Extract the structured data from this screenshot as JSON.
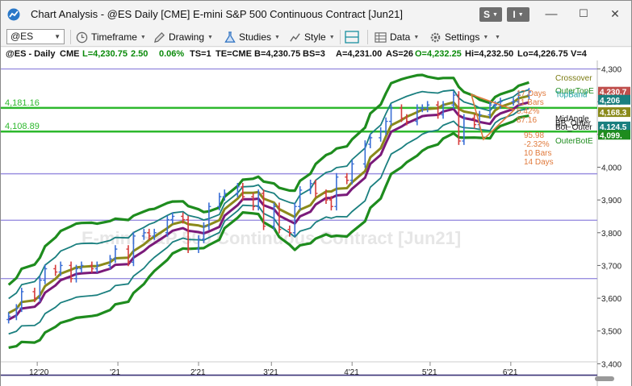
{
  "window": {
    "title": "Chart Analysis - @ES Daily [CME] E-mini S&P 500 Continuous Contract [Jun21]",
    "btn_s": "S",
    "btn_i": "I",
    "minimize": "—",
    "maximize": "☐",
    "close": "✕"
  },
  "toolbar": {
    "symbol": "@ES",
    "timeframe": "Timeframe",
    "drawing": "Drawing",
    "studies": "Studies",
    "style": "Style",
    "data": "Data",
    "settings": "Settings"
  },
  "infobar": {
    "symbol": "@ES - Daily",
    "exchange": "CME",
    "last": "L=4,230.75",
    "change": "2.50",
    "pct": "0.06%",
    "ts": "TS=1",
    "te": "TE=CME",
    "bid": "B=4,230.75",
    "bs": "BS=3",
    "ask": "A=4,231.00",
    "as": "AS=26",
    "open": "O=4,232.25",
    "high": "Hi=4,232.50",
    "low": "Lo=4,226.75",
    "volume": "V=4"
  },
  "colors": {
    "green_line": "#2db82d",
    "purple_line": "#9a8fe0",
    "navy_line": "#3b3478",
    "band_outer": "#1e8c1e",
    "band_teal": "#1a7f7f",
    "band_olive": "#8a8a1a",
    "band_purple": "#7a1a7a",
    "bar_up": "#3b6fd6",
    "bar_down": "#d63b3b",
    "watermark": "#e6e6e6"
  },
  "chart": {
    "watermark": "E-mini S&P 500 Continuous Contract [Jun21]",
    "hlines": [
      {
        "name": "4181",
        "value": 4181.16,
        "label": "4,181.16",
        "color": "#2db82d"
      },
      {
        "name": "4108",
        "value": 4108.89,
        "label": "4,108.89",
        "color": "#2db82d"
      }
    ],
    "plain_hlines": [
      4300,
      3980,
      3838,
      3660,
      3365
    ],
    "right_labels": [
      {
        "text": "Crossover",
        "value": 4274,
        "color": "#7a7a10"
      },
      {
        "text": "OuterTopE",
        "value": 4235,
        "color": "#1e8c1e"
      },
      {
        "text": "TopBand",
        "value": 4224,
        "color": "#1aa0a0"
      },
      {
        "text": "MidAngle",
        "value": 4150,
        "color": "#111111"
      },
      {
        "text": "BB_Outer",
        "value": 4137,
        "color": "#111111"
      },
      {
        "text": "Bot_Outer",
        "value": 4124,
        "color": "#111111"
      },
      {
        "text": "OuterBotE",
        "value": 4082,
        "color": "#1e8c1e"
      }
    ],
    "annotations_top": [
      "17 Days",
      "11 Bars",
      "5.42%",
      "87.16"
    ],
    "annotations_bottom": [
      "95.98",
      "-2.32%",
      "10 Bars",
      "14 Days"
    ],
    "price_tags": [
      {
        "text": "4,230.7",
        "value": 4230.75,
        "bg": "#c0504d"
      },
      {
        "text": "4,206",
        "value": 4206,
        "bg": "#1a7f7f"
      },
      {
        "text": "4,168.3",
        "value": 4168.3,
        "bg": "#8a8a1a"
      },
      {
        "text": "4,124.5",
        "value": 4124.5,
        "bg": "#1a7f7f"
      },
      {
        "text": "4,099.",
        "value": 4099,
        "bg": "#1e8c1e"
      }
    ]
  },
  "chart_data": {
    "type": "line",
    "title": "@ES Daily [CME] E-mini S&P 500 Continuous Contract [Jun21]",
    "y_ticks": [
      "4,300",
      "4,200",
      "4,100",
      "4,000",
      "3,900",
      "3,800",
      "3,700",
      "3,600",
      "3,500",
      "3,400"
    ],
    "y_tick_values": [
      4300,
      4200,
      4100,
      4000,
      3900,
      3800,
      3700,
      3600,
      3500,
      3400
    ],
    "x_ticks": [
      "12'20",
      "'21",
      "2'21",
      "3'21",
      "4'21",
      "5'21",
      "6'21"
    ],
    "ylim": [
      3332,
      4326
    ],
    "x": [
      "2020-11-20",
      "2020-11-23",
      "2020-11-25",
      "2020-11-30",
      "2020-12-02",
      "2020-12-04",
      "2020-12-08",
      "2020-12-10",
      "2020-12-14",
      "2020-12-16",
      "2020-12-18",
      "2020-12-22",
      "2020-12-24",
      "2020-12-29",
      "2020-12-31",
      "2021-01-05",
      "2021-01-07",
      "2021-01-11",
      "2021-01-13",
      "2021-01-15",
      "2021-01-20",
      "2021-01-22",
      "2021-01-26",
      "2021-01-28",
      "2021-02-01",
      "2021-02-03",
      "2021-02-05",
      "2021-02-09",
      "2021-02-11",
      "2021-02-16",
      "2021-02-18",
      "2021-02-22",
      "2021-02-24",
      "2021-02-26",
      "2021-03-02",
      "2021-03-04",
      "2021-03-08",
      "2021-03-10",
      "2021-03-12",
      "2021-03-16",
      "2021-03-18",
      "2021-03-22",
      "2021-03-24",
      "2021-03-26",
      "2021-03-30",
      "2021-04-01",
      "2021-04-06",
      "2021-04-08",
      "2021-04-12",
      "2021-04-14",
      "2021-04-16",
      "2021-04-20",
      "2021-04-22",
      "2021-04-26",
      "2021-04-28",
      "2021-04-30",
      "2021-05-04",
      "2021-05-06",
      "2021-05-10",
      "2021-05-12",
      "2021-05-14",
      "2021-05-18",
      "2021-05-20",
      "2021-05-24",
      "2021-05-26",
      "2021-05-28",
      "2021-06-02",
      "2021-06-04",
      "2021-06-08"
    ],
    "series": [
      {
        "values": [
          3545,
          3570,
          3620,
          3600,
          3655,
          3690,
          3680,
          3700,
          3660,
          3690,
          3700,
          3690,
          3700,
          3720,
          3750,
          3710,
          3790,
          3800,
          3790,
          3800,
          3840,
          3850,
          3840,
          3750,
          3780,
          3820,
          3880,
          3910,
          3920,
          3940,
          3910,
          3880,
          3920,
          3820,
          3880,
          3810,
          3800,
          3880,
          3930,
          3950,
          3920,
          3900,
          3880,
          3970,
          3960,
          4010,
          4070,
          4090,
          4110,
          4140,
          4180,
          4150,
          4140,
          4180,
          4180,
          4190,
          4160,
          4190,
          4220,
          4080,
          4150,
          4130,
          4160,
          4190,
          4190,
          4200,
          4200,
          4220,
          4230
        ]
      }
    ]
  }
}
